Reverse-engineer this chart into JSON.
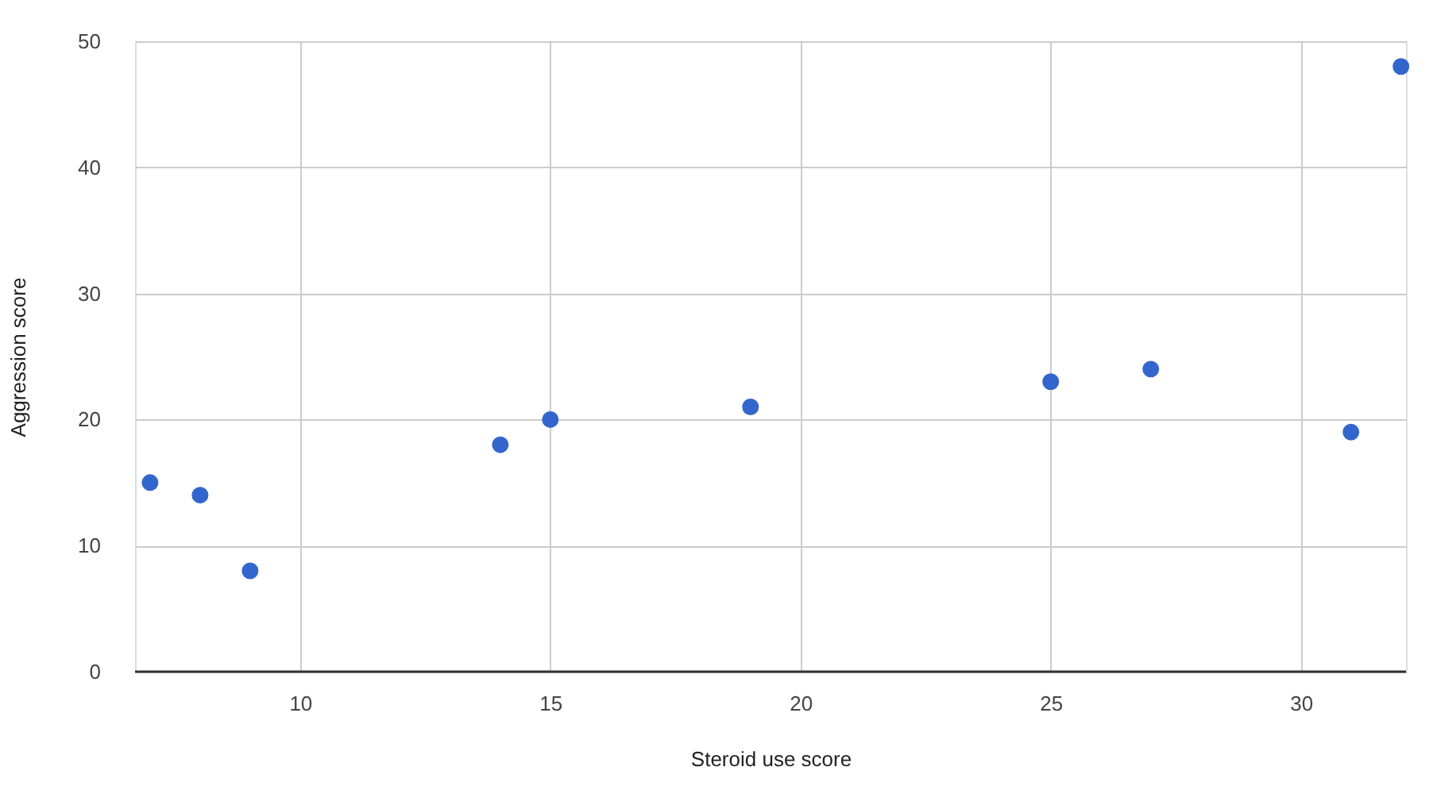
{
  "chart_data": {
    "type": "scatter",
    "xlabel": "Steroid use score",
    "ylabel": "Aggression score",
    "x": [
      7,
      8,
      9,
      14,
      15,
      19,
      25,
      27,
      31,
      32
    ],
    "series": [
      {
        "color": "#3366cc",
        "values": [
          15,
          14,
          8,
          18,
          20,
          21,
          23,
          24,
          19,
          48
        ]
      }
    ],
    "xlim": [
      6.7,
      32.1
    ],
    "xticks": [
      10,
      15,
      20,
      25,
      30
    ],
    "ylim": [
      0,
      50
    ],
    "yticks": [
      0,
      10,
      20,
      30,
      40,
      50
    ],
    "grid": true,
    "marker": "circle"
  }
}
